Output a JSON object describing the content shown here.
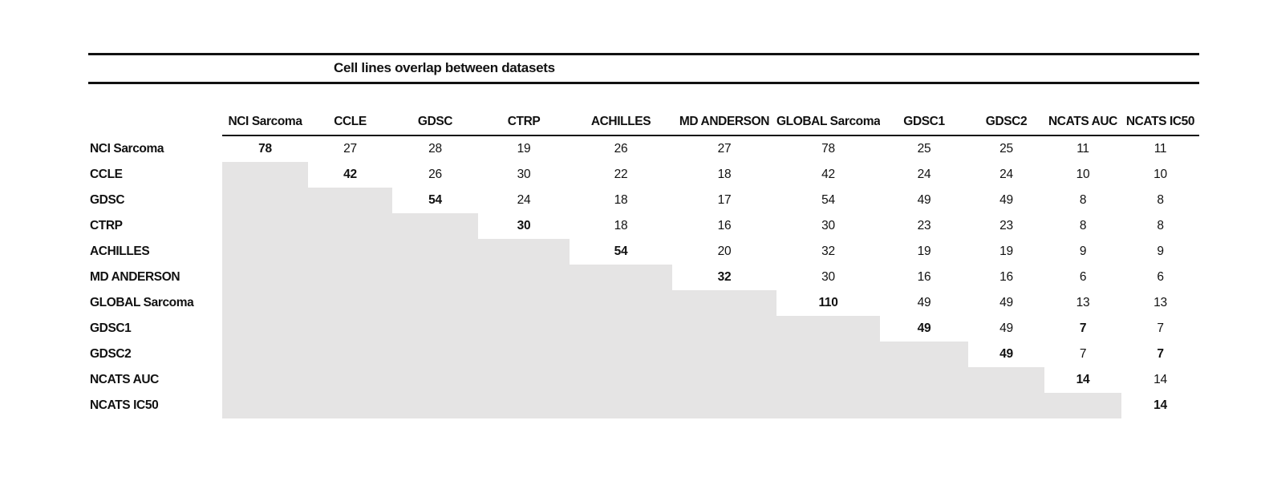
{
  "title": "Cell lines overlap between datasets",
  "colors": {
    "shaded_cell": "#e5e4e4",
    "text": "#111111",
    "rule": "#111111"
  },
  "table": {
    "datasets": [
      "NCI Sarcoma",
      "CCLE",
      "GDSC",
      "CTRP",
      "ACHILLES",
      "MD ANDERSON",
      "GLOBAL Sarcoma",
      "GDSC1",
      "GDSC2",
      "NCATS AUC",
      "NCATS IC50"
    ],
    "matrix": [
      [
        78,
        27,
        28,
        19,
        26,
        27,
        78,
        25,
        25,
        11,
        11
      ],
      [
        null,
        42,
        26,
        30,
        22,
        18,
        42,
        24,
        24,
        10,
        10
      ],
      [
        null,
        null,
        54,
        24,
        18,
        17,
        54,
        49,
        49,
        8,
        8
      ],
      [
        null,
        null,
        null,
        30,
        18,
        16,
        30,
        23,
        23,
        8,
        8
      ],
      [
        null,
        null,
        null,
        null,
        54,
        20,
        32,
        19,
        19,
        9,
        9
      ],
      [
        null,
        null,
        null,
        null,
        null,
        32,
        30,
        16,
        16,
        6,
        6
      ],
      [
        null,
        null,
        null,
        null,
        null,
        null,
        110,
        49,
        49,
        13,
        13
      ],
      [
        null,
        null,
        null,
        null,
        null,
        null,
        null,
        49,
        49,
        7,
        7
      ],
      [
        null,
        null,
        null,
        null,
        null,
        null,
        null,
        null,
        49,
        7,
        7
      ],
      [
        null,
        null,
        null,
        null,
        null,
        null,
        null,
        null,
        null,
        14,
        14
      ],
      [
        null,
        null,
        null,
        null,
        null,
        null,
        null,
        null,
        null,
        null,
        14
      ]
    ],
    "bold_cells": [
      [
        0,
        0
      ],
      [
        1,
        1
      ],
      [
        2,
        2
      ],
      [
        3,
        3
      ],
      [
        4,
        4
      ],
      [
        5,
        5
      ],
      [
        6,
        6
      ],
      [
        7,
        7
      ],
      [
        7,
        9
      ],
      [
        8,
        8
      ],
      [
        8,
        10
      ],
      [
        9,
        9
      ],
      [
        10,
        10
      ]
    ]
  }
}
